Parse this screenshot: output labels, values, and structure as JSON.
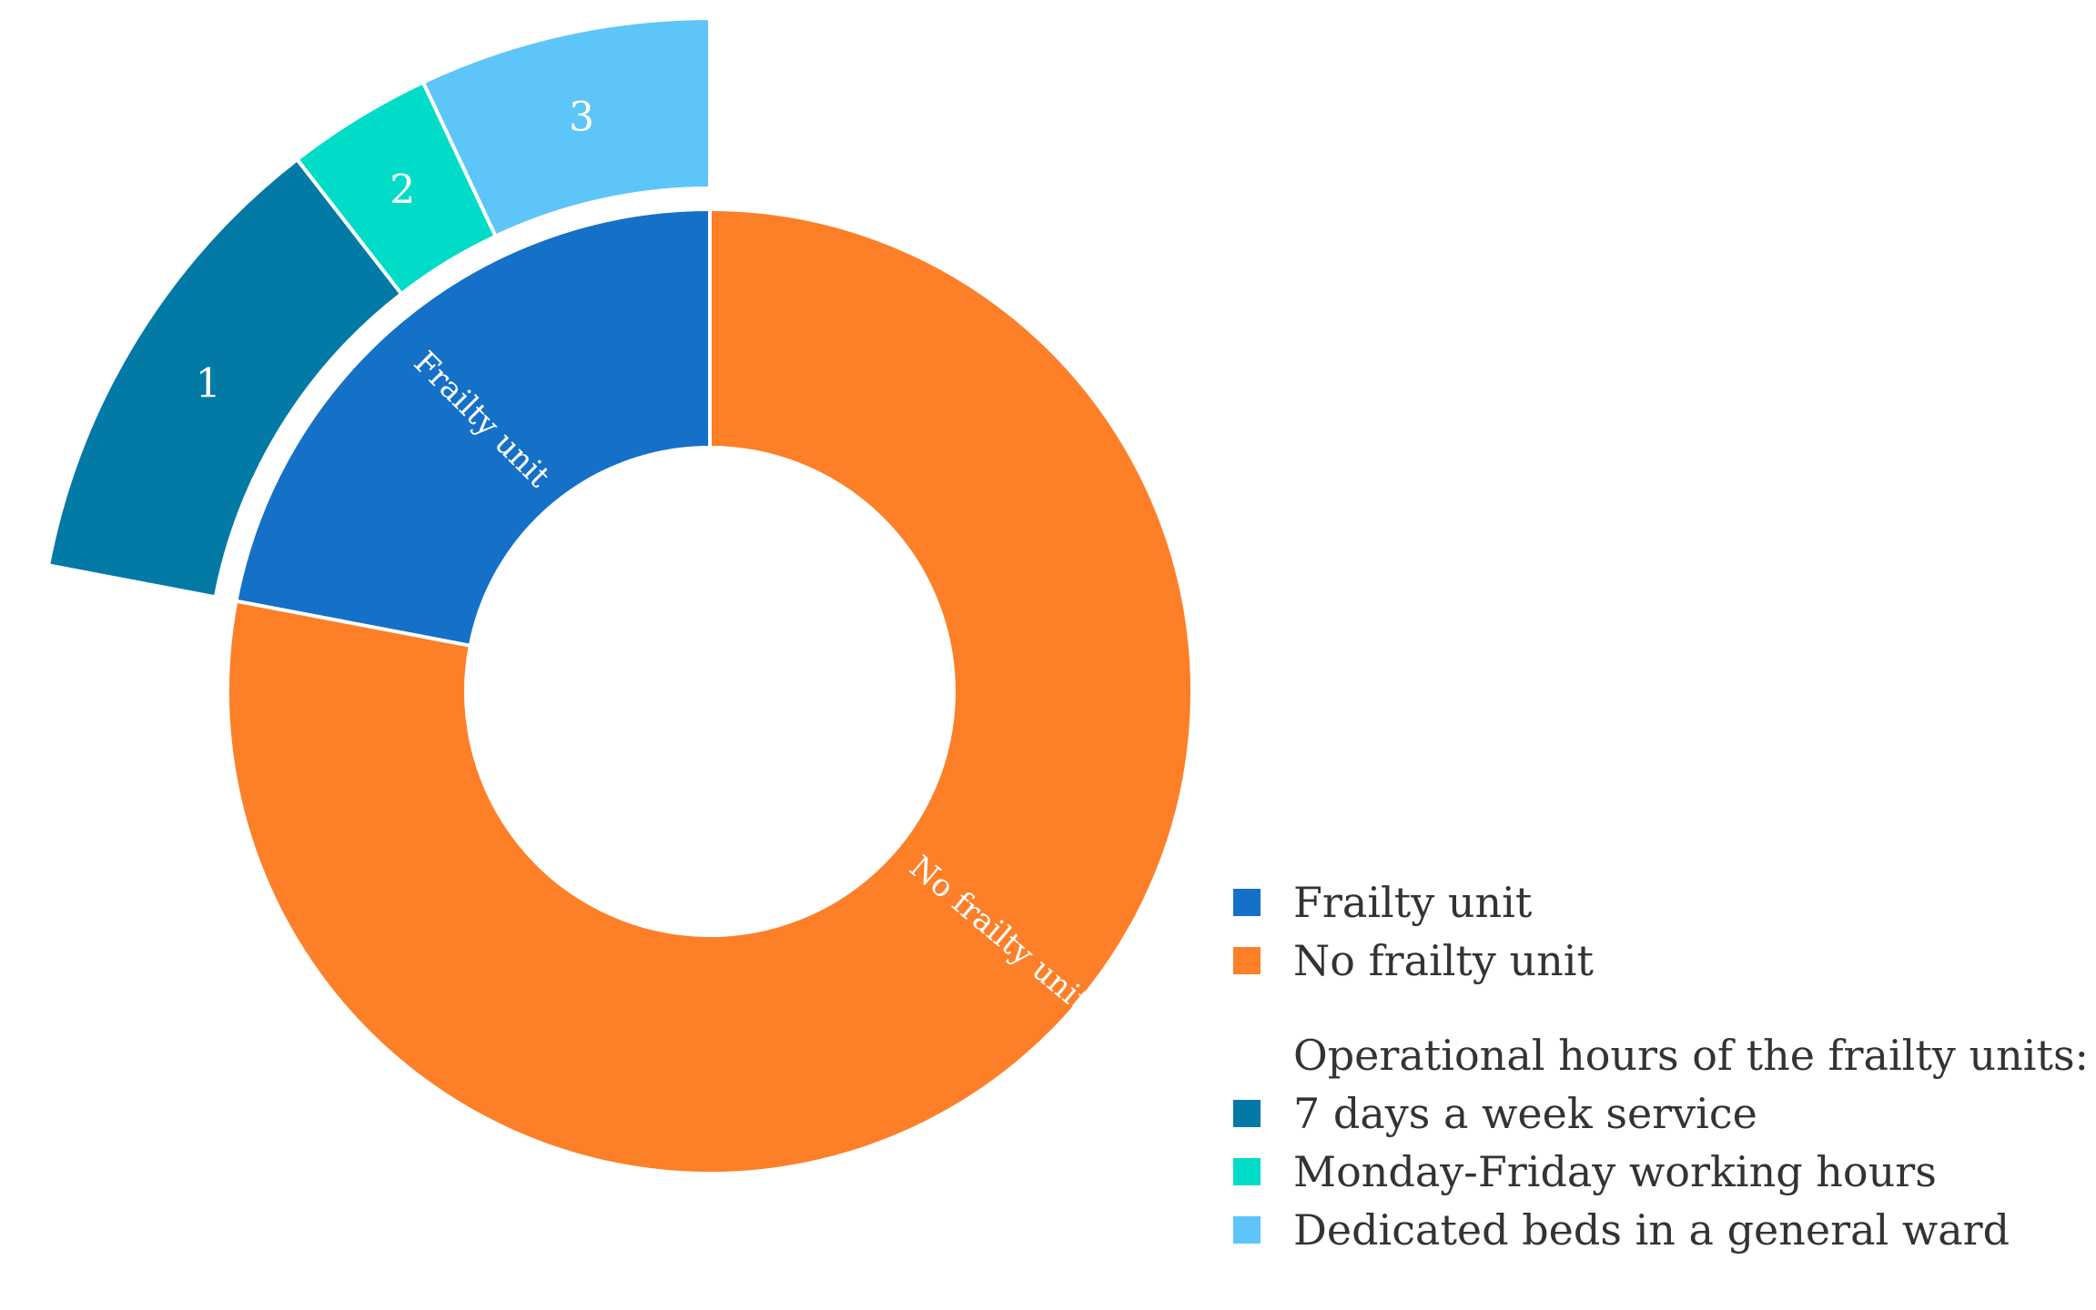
{
  "chart_data": {
    "type": "pie",
    "inner_ring": {
      "slices": [
        {
          "label": "Frailty unit",
          "value": 22,
          "color": "#1570c8"
        },
        {
          "label": "No frailty unit",
          "value": 78,
          "color": "#fd7f28"
        }
      ]
    },
    "outer_ring": {
      "slices": [
        {
          "label": "1",
          "value": 11.5,
          "color": "#0379a6"
        },
        {
          "label": "2",
          "value": 3.5,
          "color": "#00dcc8"
        },
        {
          "label": "3",
          "value": 7,
          "color": "#5ec5f8"
        }
      ]
    },
    "legend": {
      "primary": [
        {
          "label": "Frailty unit",
          "color": "#1570c8"
        },
        {
          "label": "No frailty unit",
          "color": "#fd7f28"
        }
      ],
      "heading": "Operational hours of the frailty units:",
      "secondary": [
        {
          "label": "7 days a week service",
          "color": "#0379a6"
        },
        {
          "label": "Monday-Friday working hours",
          "color": "#00dcc8"
        },
        {
          "label": "Dedicated beds in a general ward",
          "color": "#5ec5f8"
        }
      ]
    }
  }
}
